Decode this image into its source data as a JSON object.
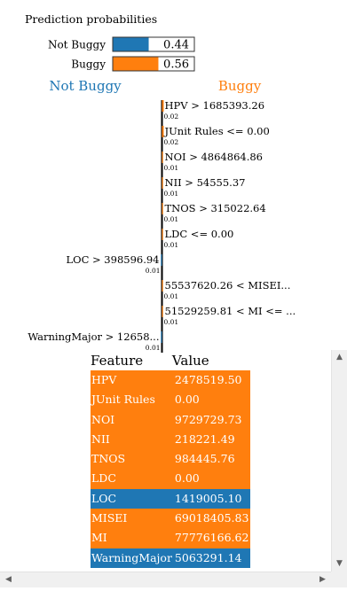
{
  "chart_data": {
    "type": "bar",
    "title": "Prediction probabilities",
    "classes": [
      {
        "name": "Not Buggy",
        "probability": 0.44,
        "display": "0.44",
        "color": "#1f77b4"
      },
      {
        "name": "Buggy",
        "probability": 0.56,
        "display": "0.56",
        "color": "#ff7f0e"
      }
    ],
    "explanation": {
      "left_label": "Not Buggy",
      "right_label": "Buggy",
      "features": [
        {
          "label": "HPV > 1685393.26",
          "weight": 0.02,
          "display": "0.02",
          "class": "Buggy"
        },
        {
          "label": "JUnit Rules <= 0.00",
          "weight": 0.02,
          "display": "0.02",
          "class": "Buggy"
        },
        {
          "label": "NOI > 4864864.86",
          "weight": 0.01,
          "display": "0.01",
          "class": "Buggy"
        },
        {
          "label": "NII > 54555.37",
          "weight": 0.01,
          "display": "0.01",
          "class": "Buggy"
        },
        {
          "label": "TNOS > 315022.64",
          "weight": 0.01,
          "display": "0.01",
          "class": "Buggy"
        },
        {
          "label": "LDC <= 0.00",
          "weight": 0.01,
          "display": "0.01",
          "class": "Buggy"
        },
        {
          "label": "LOC > 398596.94",
          "weight": 0.01,
          "display": "0.01",
          "class": "Not Buggy"
        },
        {
          "label": "55537620.26 < MISEI...",
          "weight": 0.01,
          "display": "0.01",
          "class": "Buggy"
        },
        {
          "label": "51529259.81 < MI <= ...",
          "weight": 0.01,
          "display": "0.01",
          "class": "Buggy"
        },
        {
          "label": "WarningMajor > 12658...",
          "weight": 0.01,
          "display": "0.01",
          "class": "Not Buggy"
        }
      ]
    }
  },
  "table": {
    "header_feature": "Feature",
    "header_value": "Value",
    "rows": [
      {
        "feature": "HPV",
        "value": "2478519.50",
        "class": "Buggy"
      },
      {
        "feature": "JUnit Rules",
        "value": "0.00",
        "class": "Buggy"
      },
      {
        "feature": "NOI",
        "value": "9729729.73",
        "class": "Buggy"
      },
      {
        "feature": "NII",
        "value": "218221.49",
        "class": "Buggy"
      },
      {
        "feature": "TNOS",
        "value": "984445.76",
        "class": "Buggy"
      },
      {
        "feature": "LDC",
        "value": "0.00",
        "class": "Buggy"
      },
      {
        "feature": "LOC",
        "value": "1419005.10",
        "class": "Not Buggy"
      },
      {
        "feature": "MISEI",
        "value": "69018405.83",
        "class": "Buggy"
      },
      {
        "feature": "MI",
        "value": "77776166.62",
        "class": "Buggy"
      },
      {
        "feature": "WarningMajor",
        "value": "5063291.14",
        "class": "Not Buggy"
      }
    ]
  },
  "colors": {
    "not_buggy": "#1f77b4",
    "buggy": "#ff7f0e"
  },
  "scrollbar": {
    "up_icon": "▲",
    "down_icon": "▼",
    "left_icon": "◀",
    "right_icon": "▶"
  }
}
